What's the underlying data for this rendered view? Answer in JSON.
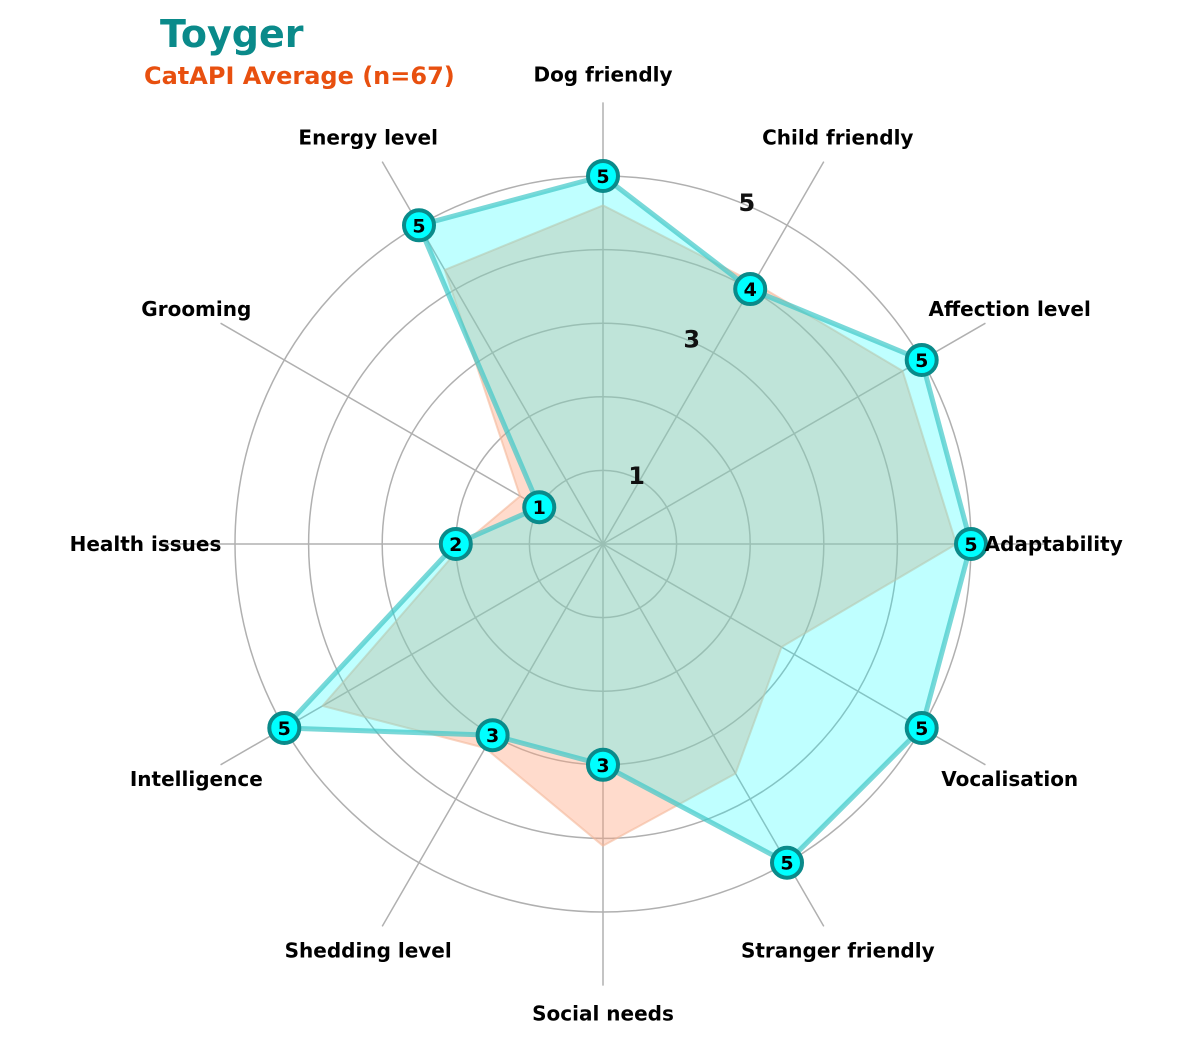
{
  "chart_data": {
    "type": "radar",
    "title": "Toyger",
    "subtitle": "CatAPI Average (n=67)",
    "axes": [
      "Adaptability",
      "Affection level",
      "Child friendly",
      "Dog friendly",
      "Energy level",
      "Grooming",
      "Health issues",
      "Intelligence",
      "Shedding level",
      "Social needs",
      "Stranger friendly",
      "Vocalisation"
    ],
    "rlim": [
      0,
      5
    ],
    "ring_ticks": [
      1,
      3,
      5
    ],
    "grid": true,
    "series": [
      {
        "name": "Toyger",
        "values": [
          5,
          5,
          4,
          5,
          5,
          1,
          2,
          5,
          3,
          3,
          5,
          5
        ],
        "color": "#00ffff",
        "edge": "#0a8a8a"
      },
      {
        "name": "CatAPI Average (n=67)",
        "values": [
          4.8,
          4.7,
          4.1,
          4.6,
          4.3,
          1.3,
          1.9,
          4.4,
          3.2,
          4.1,
          3.6,
          2.8
        ],
        "color": "#ffa07a"
      }
    ]
  }
}
